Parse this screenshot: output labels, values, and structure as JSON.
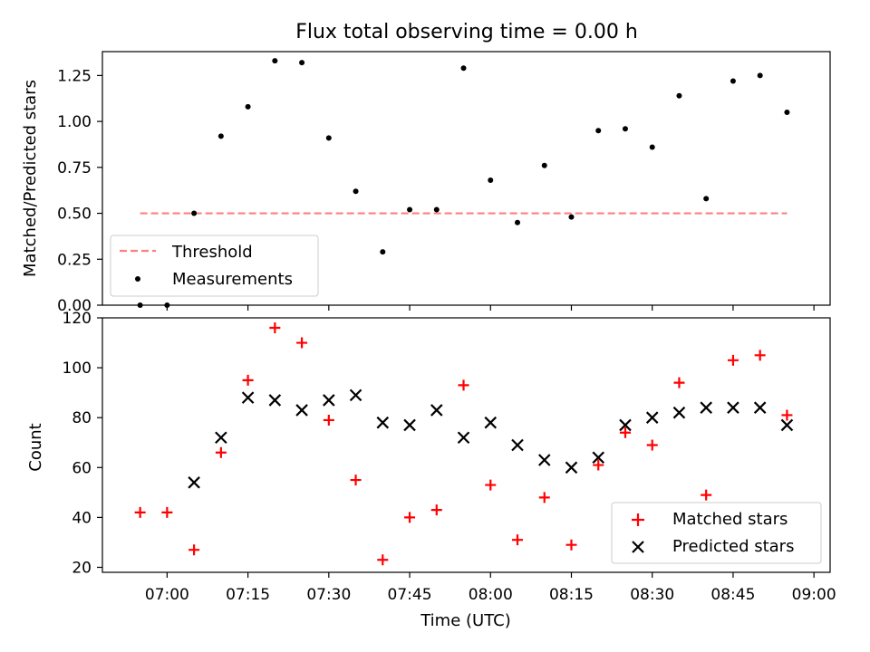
{
  "chart_data": [
    {
      "type": "scatter",
      "title": "Flux total observing time = 0.00 h",
      "xlabel": "",
      "ylabel": "Matched/Predicted stars",
      "ylim": [
        0,
        1.38
      ],
      "yticks": [
        "0.00",
        "0.25",
        "0.50",
        "0.75",
        "1.00",
        "1.25"
      ],
      "ytick_values": [
        0,
        0.25,
        0.5,
        0.75,
        1.0,
        1.25
      ],
      "legend_position": "lower-left",
      "series": [
        {
          "name": "Measurements",
          "color": "#000000",
          "marker": "dot",
          "x": [
            "06:55",
            "07:00",
            "07:05",
            "07:10",
            "07:15",
            "07:20",
            "07:25",
            "07:30",
            "07:35",
            "07:40",
            "07:45",
            "07:50",
            "07:55",
            "08:00",
            "08:05",
            "08:10",
            "08:15",
            "08:20",
            "08:25",
            "08:30",
            "08:35",
            "08:40",
            "08:45",
            "08:50",
            "08:55"
          ],
          "y": [
            0.0,
            0.0,
            0.5,
            0.92,
            1.08,
            1.33,
            1.32,
            0.91,
            0.62,
            0.29,
            0.52,
            0.52,
            1.29,
            0.68,
            0.45,
            0.76,
            0.48,
            0.95,
            0.96,
            0.86,
            1.14,
            0.58,
            1.22,
            1.25,
            1.05
          ]
        },
        {
          "name": "Threshold",
          "color": "#ff7f7f",
          "style": "dashed",
          "x": [
            "06:55",
            "08:55"
          ],
          "y": [
            0.5,
            0.5
          ]
        }
      ]
    },
    {
      "type": "scatter",
      "xlabel": "Time (UTC)",
      "ylabel": "Count",
      "xlim": [
        "06:48",
        "09:03"
      ],
      "ylim": [
        18,
        120
      ],
      "xticks": [
        "07:00",
        "07:15",
        "07:30",
        "07:45",
        "08:00",
        "08:15",
        "08:30",
        "08:45",
        "09:00"
      ],
      "yticks": [
        "20",
        "40",
        "60",
        "80",
        "100",
        "120"
      ],
      "ytick_values": [
        20,
        40,
        60,
        80,
        100,
        120
      ],
      "legend_position": "lower-right",
      "series": [
        {
          "name": "Matched stars",
          "color": "#ff0000",
          "marker": "plus",
          "x": [
            "06:55",
            "07:00",
            "07:05",
            "07:10",
            "07:15",
            "07:20",
            "07:25",
            "07:30",
            "07:35",
            "07:40",
            "07:45",
            "07:50",
            "07:55",
            "08:00",
            "08:05",
            "08:10",
            "08:15",
            "08:20",
            "08:25",
            "08:30",
            "08:35",
            "08:40",
            "08:45",
            "08:50",
            "08:55"
          ],
          "y": [
            42,
            42,
            27,
            66,
            95,
            116,
            110,
            79,
            55,
            23,
            40,
            43,
            93,
            53,
            31,
            48,
            29,
            61,
            74,
            69,
            94,
            49,
            103,
            105,
            81
          ]
        },
        {
          "name": "Predicted stars",
          "color": "#000000",
          "marker": "x",
          "x": [
            "07:05",
            "07:10",
            "07:15",
            "07:20",
            "07:25",
            "07:30",
            "07:35",
            "07:40",
            "07:45",
            "07:50",
            "07:55",
            "08:00",
            "08:05",
            "08:10",
            "08:15",
            "08:20",
            "08:25",
            "08:30",
            "08:35",
            "08:40",
            "08:45",
            "08:50",
            "08:55"
          ],
          "y": [
            54,
            72,
            88,
            87,
            83,
            87,
            89,
            78,
            77,
            83,
            72,
            78,
            69,
            63,
            60,
            64,
            77,
            80,
            82,
            84,
            84,
            84,
            77
          ]
        }
      ]
    }
  ]
}
